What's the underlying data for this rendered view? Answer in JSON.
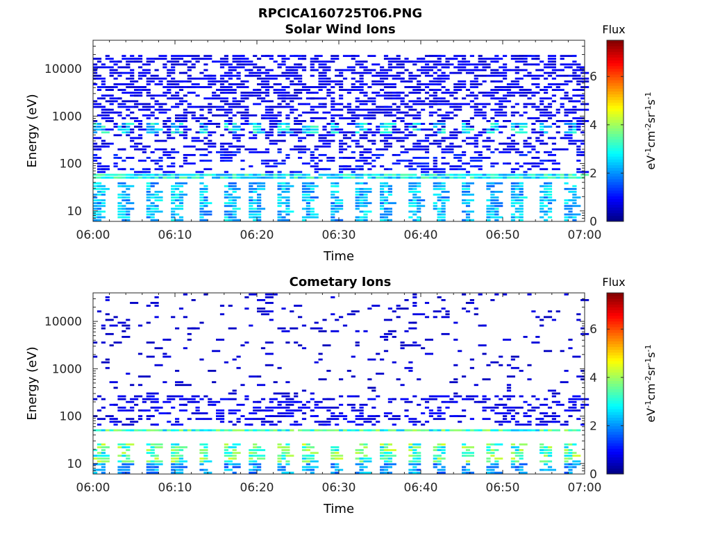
{
  "figure": {
    "title": "RPCICA160725T06.PNG"
  },
  "chart_data": [
    {
      "type": "heatmap",
      "title": "Solar Wind Ions",
      "xlabel": "Time",
      "ylabel": "Energy (eV)",
      "x_ticks": [
        "06:00",
        "06:10",
        "06:20",
        "06:30",
        "06:40",
        "06:50",
        "07:00"
      ],
      "xlim": [
        "06:00",
        "07:00"
      ],
      "y_ticks": [
        "10",
        "100",
        "1000",
        "10000"
      ],
      "ylim": [
        6,
        40000
      ],
      "yscale": "log",
      "colorbar": {
        "label": "Flux",
        "units": "eV-1cm-2sr-1s-1",
        "ticks": [
          "0",
          "2",
          "4",
          "6"
        ],
        "range": [
          0,
          7.5
        ],
        "colormap": "jet"
      },
      "bands": [
        {
          "energy_range": [
            45,
            60
          ],
          "flux": 2.8,
          "pattern": "continuous"
        },
        {
          "energy_range": [
            450,
            750
          ],
          "flux": 2.6,
          "pattern": "periodic",
          "period_min": 3.2
        },
        {
          "energy_range": [
            6,
            40
          ],
          "flux": 2.3,
          "pattern": "periodic",
          "period_min": 3.2
        },
        {
          "energy_range": [
            200,
            20000
          ],
          "flux": 0.8,
          "pattern": "sparse-dense"
        },
        {
          "energy_range": [
            60,
            200
          ],
          "flux": 1.0,
          "pattern": "sparse"
        }
      ]
    },
    {
      "type": "heatmap",
      "title": "Cometary Ions",
      "xlabel": "Time",
      "ylabel": "Energy (eV)",
      "x_ticks": [
        "06:00",
        "06:10",
        "06:20",
        "06:30",
        "06:40",
        "06:50",
        "07:00"
      ],
      "xlim": [
        "06:00",
        "07:00"
      ],
      "y_ticks": [
        "10",
        "100",
        "1000",
        "10000"
      ],
      "ylim": [
        6,
        40000
      ],
      "yscale": "log",
      "colorbar": {
        "label": "Flux",
        "units": "eV-1cm-2sr-1s-1",
        "ticks": [
          "0",
          "2",
          "4",
          "6"
        ],
        "range": [
          0,
          7.5
        ],
        "colormap": "jet"
      },
      "bands": [
        {
          "energy_range": [
            45,
            58
          ],
          "flux": 3.2,
          "pattern": "continuous"
        },
        {
          "energy_range": [
            10,
            28
          ],
          "flux": 3.4,
          "pattern": "periodic",
          "period_min": 3.2
        },
        {
          "energy_range": [
            6,
            10
          ],
          "flux": 2.0,
          "pattern": "periodic",
          "period_min": 3.2
        },
        {
          "energy_range": [
            60,
            300
          ],
          "flux": 0.8,
          "pattern": "sparse"
        },
        {
          "energy_range": [
            300,
            40000
          ],
          "flux": 0.6,
          "pattern": "very-sparse"
        }
      ]
    }
  ]
}
